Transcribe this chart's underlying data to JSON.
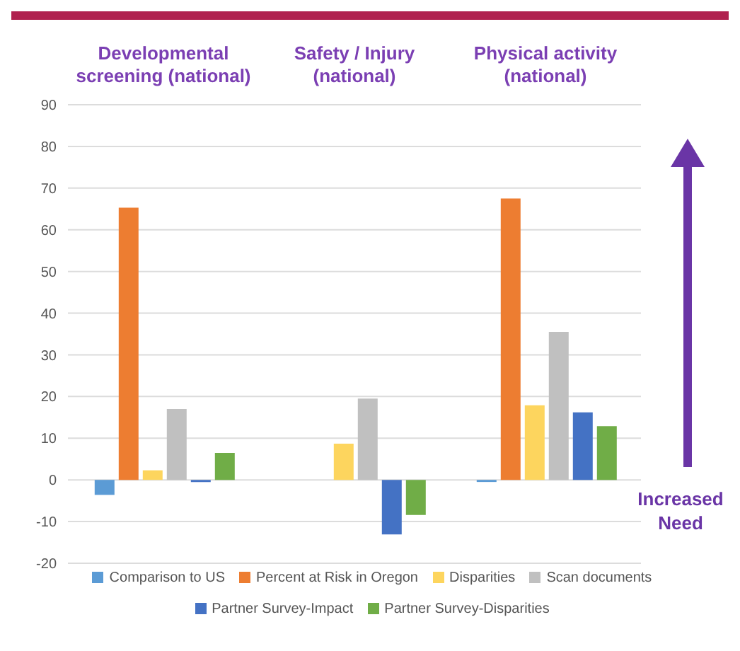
{
  "chart_data": {
    "type": "bar",
    "categories": [
      "Developmental screening (national)",
      "Safety / Injury (national)",
      "Physical activity (national)"
    ],
    "series": [
      {
        "name": "Comparison to US",
        "color": "#5b9bd5",
        "values": [
          -3.6,
          0,
          -0.5
        ]
      },
      {
        "name": "Percent at Risk in Oregon",
        "color": "#ed7d31",
        "values": [
          65.3,
          null,
          67.5
        ]
      },
      {
        "name": "Disparities",
        "color": "#fdd55e",
        "values": [
          2.3,
          8.7,
          17.9
        ]
      },
      {
        "name": "Scan documents",
        "color": "#c0c0c0",
        "values": [
          17,
          19.5,
          35.5
        ]
      },
      {
        "name": "Partner Survey-Impact",
        "color": "#4472c4",
        "values": [
          -0.5,
          -13.1,
          16.2
        ]
      },
      {
        "name": "Partner Survey-Disparities",
        "color": "#70ad47",
        "values": [
          6.5,
          -8.4,
          12.9
        ]
      }
    ],
    "ylim": [
      -20,
      90
    ],
    "yticks": [
      -20,
      -10,
      0,
      10,
      20,
      30,
      40,
      50,
      60,
      70,
      80,
      90
    ],
    "grid": "y",
    "legend": "bottom",
    "annotations": [
      "Increased Need"
    ]
  }
}
